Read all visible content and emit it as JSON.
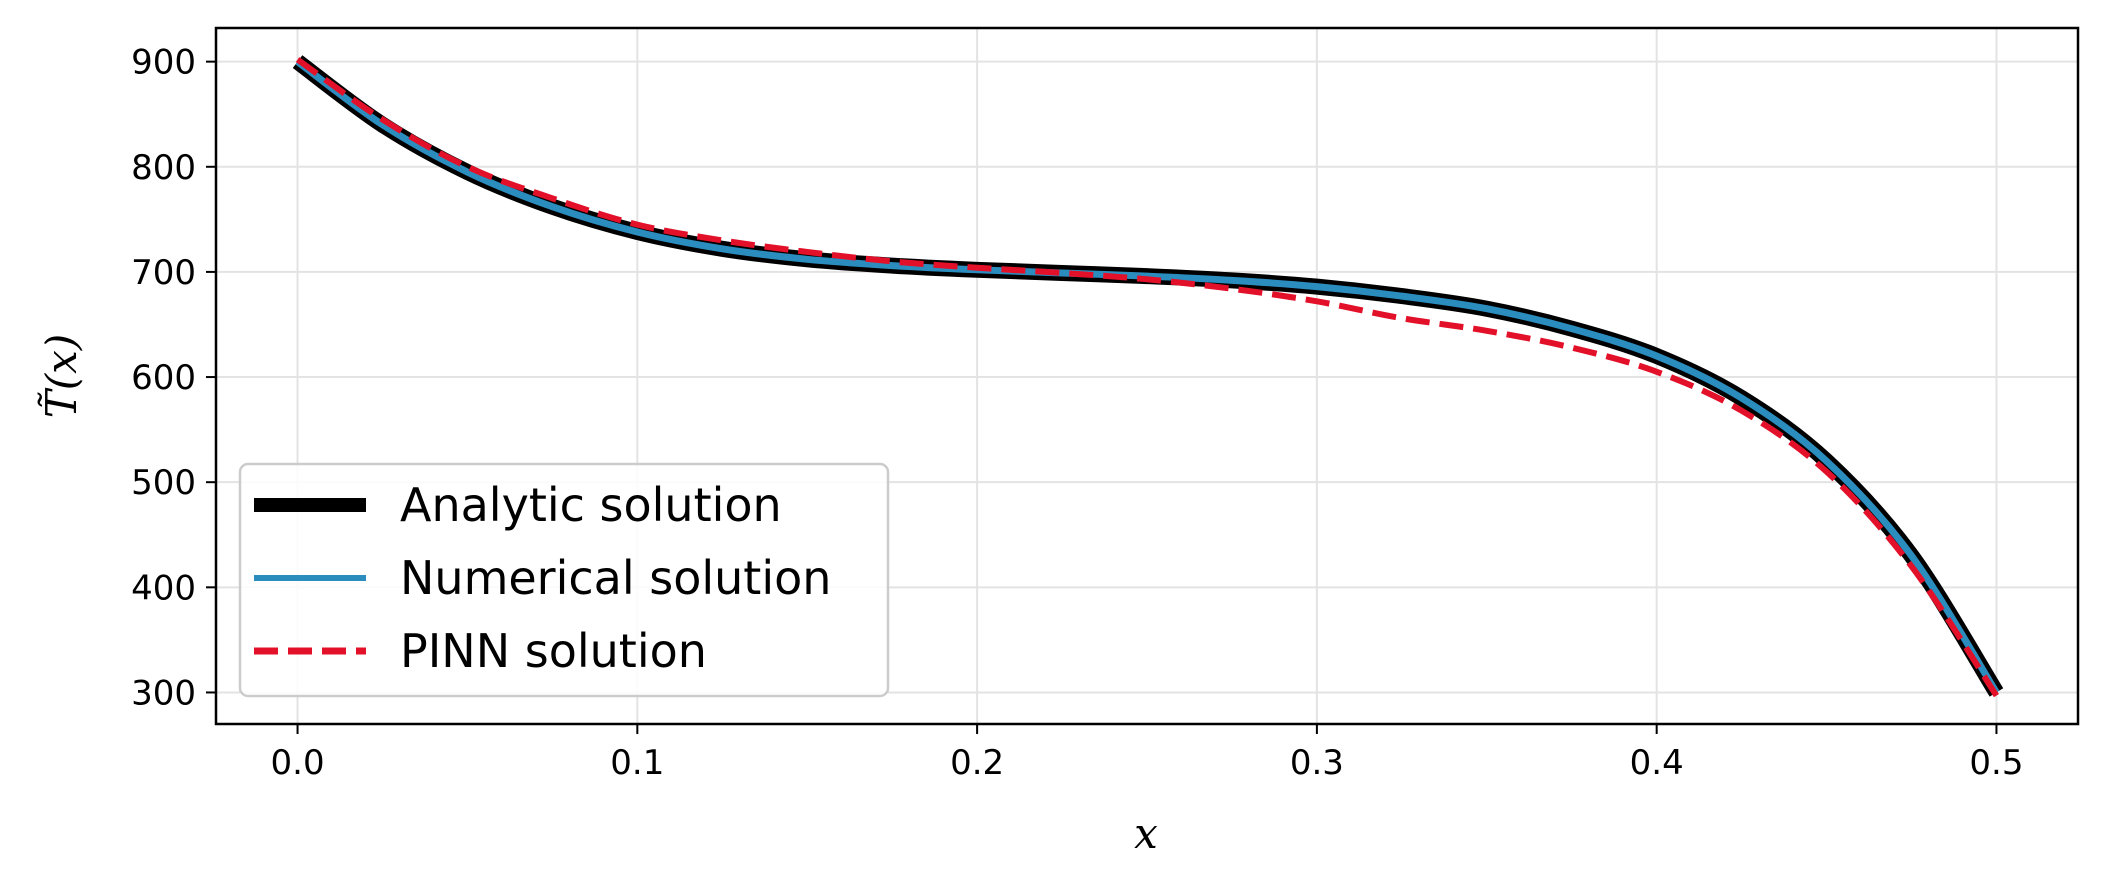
{
  "chart_data": {
    "type": "line",
    "title": "",
    "xlabel": "x",
    "ylabel": "T̃(x)",
    "xlim": [
      -0.024,
      0.524
    ],
    "ylim": [
      270,
      932
    ],
    "xticks": [
      "0.0",
      "0.1",
      "0.2",
      "0.3",
      "0.4",
      "0.5"
    ],
    "xtick_values": [
      0.0,
      0.1,
      0.2,
      0.3,
      0.4,
      0.5
    ],
    "yticks": [
      "300",
      "400",
      "500",
      "600",
      "700",
      "800",
      "900"
    ],
    "ytick_values": [
      300,
      400,
      500,
      600,
      700,
      800,
      900
    ],
    "grid": true,
    "legend_position": "lower-left",
    "series": [
      {
        "name": "Analytic solution",
        "color": "#000000",
        "style": "solid-thick",
        "x": [
          0.0,
          0.025,
          0.05,
          0.075,
          0.1,
          0.125,
          0.15,
          0.175,
          0.2,
          0.225,
          0.25,
          0.275,
          0.3,
          0.325,
          0.35,
          0.375,
          0.4,
          0.425,
          0.45,
          0.475,
          0.5
        ],
        "y": [
          900,
          840,
          795,
          762,
          738,
          722,
          712,
          706,
          702,
          699,
          696,
          692,
          686,
          677,
          665,
          646,
          620,
          580,
          520,
          430,
          300
        ]
      },
      {
        "name": "Numerical solution",
        "color": "#2b8cbe",
        "style": "solid",
        "x": [
          0.0,
          0.025,
          0.05,
          0.075,
          0.1,
          0.125,
          0.15,
          0.175,
          0.2,
          0.225,
          0.25,
          0.275,
          0.3,
          0.325,
          0.35,
          0.375,
          0.4,
          0.425,
          0.45,
          0.475,
          0.5
        ],
        "y": [
          900,
          840,
          795,
          762,
          738,
          722,
          712,
          706,
          702,
          699,
          696,
          692,
          686,
          677,
          665,
          646,
          620,
          580,
          520,
          430,
          300
        ]
      },
      {
        "name": "PINN solution",
        "color": "#e3102a",
        "style": "dashed",
        "x": [
          0.0,
          0.025,
          0.05,
          0.075,
          0.1,
          0.125,
          0.15,
          0.175,
          0.2,
          0.225,
          0.25,
          0.275,
          0.3,
          0.325,
          0.35,
          0.375,
          0.4,
          0.425,
          0.45,
          0.475,
          0.5
        ],
        "y": [
          902,
          845,
          800,
          770,
          745,
          730,
          719,
          710,
          704,
          699,
          693,
          684,
          672,
          656,
          644,
          628,
          605,
          568,
          510,
          420,
          297
        ]
      }
    ]
  }
}
